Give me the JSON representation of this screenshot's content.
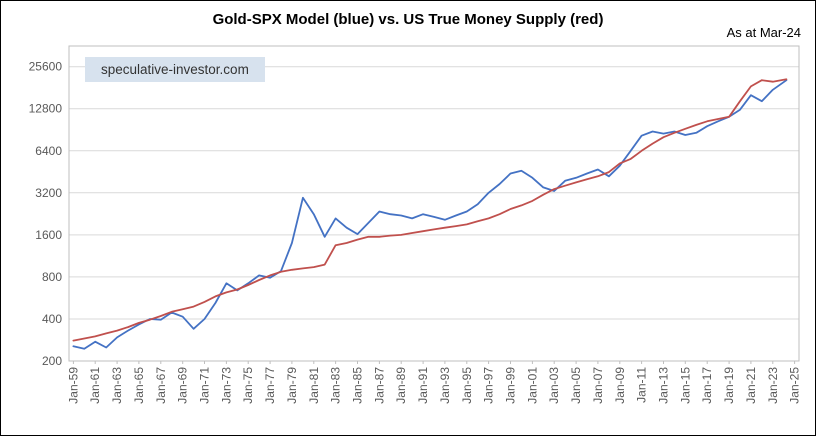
{
  "header": {
    "title": "Gold-SPX Model (blue) vs. US True Money Supply (red)",
    "as_at": "As at Mar-24"
  },
  "watermark": "speculative-investor.com",
  "chart_data": {
    "type": "line",
    "title": "Gold-SPX Model (blue) vs. US True Money Supply (red)",
    "annotation": "As at Mar-24",
    "y_scale": "log2",
    "grid": "horizontal",
    "legend": "in-title",
    "ylim": [
      200,
      36000
    ],
    "xlim": [
      1958.6,
      2025.4
    ],
    "y_ticks": [
      200,
      400,
      800,
      1600,
      3200,
      6400,
      12800,
      25600
    ],
    "x_tick_positions": [
      1959,
      1961,
      1963,
      1965,
      1967,
      1969,
      1971,
      1973,
      1975,
      1977,
      1979,
      1981,
      1983,
      1985,
      1987,
      1989,
      1991,
      1993,
      1995,
      1997,
      1999,
      2001,
      2003,
      2005,
      2007,
      2009,
      2011,
      2013,
      2015,
      2017,
      2019,
      2021,
      2023,
      2025
    ],
    "x_tick_labels": [
      "Jan-59",
      "Jan-61",
      "Jan-63",
      "Jan-65",
      "Jan-67",
      "Jan-69",
      "Jan-71",
      "Jan-73",
      "Jan-75",
      "Jan-77",
      "Jan-79",
      "Jan-81",
      "Jan-83",
      "Jan-85",
      "Jan-87",
      "Jan-89",
      "Jan-91",
      "Jan-93",
      "Jan-95",
      "Jan-97",
      "Jan-99",
      "Jan-01",
      "Jan-03",
      "Jan-05",
      "Jan-07",
      "Jan-09",
      "Jan-11",
      "Jan-13",
      "Jan-15",
      "Jan-17",
      "Jan-19",
      "Jan-21",
      "Jan-23",
      "Jan-25"
    ],
    "colors": {
      "grid": "#d9d9d9",
      "border": "#bfbfbf",
      "tick_label": "#595959"
    },
    "x": [
      1959,
      1960,
      1961,
      1962,
      1963,
      1964,
      1965,
      1966,
      1967,
      1968,
      1969,
      1970,
      1971,
      1972,
      1973,
      1974,
      1975,
      1976,
      1977,
      1978,
      1979,
      1980,
      1981,
      1982,
      1983,
      1984,
      1985,
      1986,
      1987,
      1988,
      1989,
      1990,
      1991,
      1992,
      1993,
      1994,
      1995,
      1996,
      1997,
      1998,
      1999,
      2000,
      2001,
      2002,
      2003,
      2004,
      2005,
      2006,
      2007,
      2008,
      2009,
      2010,
      2011,
      2012,
      2013,
      2014,
      2015,
      2016,
      2017,
      2018,
      2019,
      2020,
      2021,
      2022,
      2023,
      2024.25
    ],
    "series": [
      {
        "name": "Gold-SPX Model",
        "color": "#4472c4",
        "values": [
          255,
          245,
          275,
          250,
          295,
          330,
          365,
          400,
          395,
          445,
          415,
          340,
          400,
          520,
          720,
          640,
          720,
          820,
          790,
          880,
          1400,
          2950,
          2250,
          1550,
          2100,
          1800,
          1620,
          1950,
          2350,
          2250,
          2200,
          2100,
          2250,
          2150,
          2050,
          2200,
          2350,
          2650,
          3200,
          3700,
          4400,
          4600,
          4100,
          3500,
          3300,
          3900,
          4100,
          4400,
          4700,
          4200,
          5000,
          6400,
          8200,
          8800,
          8500,
          8800,
          8300,
          8600,
          9600,
          10400,
          11200,
          12600,
          16000,
          14500,
          17500,
          20500
        ]
      },
      {
        "name": "US True Money Supply",
        "color": "#c0504d",
        "values": [
          280,
          290,
          300,
          315,
          330,
          350,
          375,
          395,
          420,
          450,
          470,
          490,
          530,
          580,
          620,
          650,
          700,
          760,
          820,
          870,
          900,
          920,
          940,
          980,
          1350,
          1400,
          1480,
          1550,
          1550,
          1580,
          1600,
          1650,
          1700,
          1750,
          1800,
          1850,
          1900,
          2000,
          2100,
          2250,
          2450,
          2600,
          2800,
          3100,
          3400,
          3600,
          3800,
          4000,
          4200,
          4500,
          5200,
          5600,
          6400,
          7200,
          8000,
          8600,
          9200,
          9800,
          10400,
          10800,
          11200,
          14500,
          18500,
          20500,
          20000,
          20800
        ]
      }
    ]
  }
}
